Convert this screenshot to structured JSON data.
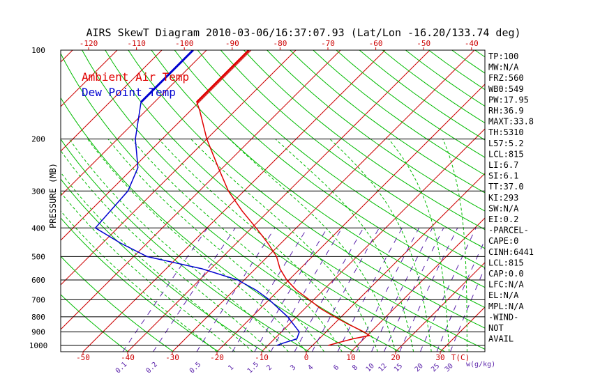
{
  "chart_data": {
    "type": "line",
    "title": "AIRS SkewT Diagram 2010-03-06/16:37:07.93 (Lat/Lon -16.20/133.74 deg)",
    "ylabel": "PRESSURE (MB)",
    "y_scale": "log",
    "ylim": [
      1050,
      100
    ],
    "xlim_bottom_c": [
      -55,
      40
    ],
    "pressure_ticks": [
      "100",
      "200",
      "300",
      "400",
      "500",
      "600",
      "700",
      "800",
      "900",
      "1000"
    ],
    "bottom_temp_ticks": [
      "-50",
      "-40",
      "-30",
      "-20",
      "-10",
      "0",
      "10",
      "20",
      "30"
    ],
    "top_temp_ticks": [
      "-120",
      "-110",
      "-100",
      "-90",
      "-80",
      "-70",
      "-60",
      "-50",
      "-40"
    ],
    "bottom_unit_label": "T(C)",
    "mixing_ratio_label": "w(g/kg)",
    "mixing_ratio_ticks": [
      "0.1",
      "0.2",
      "0.5",
      "1",
      "1.5",
      "2",
      "3",
      "4",
      "6",
      "8",
      "10",
      "12",
      "15",
      "20",
      "25",
      "30"
    ],
    "grid": true,
    "legend": "top-left inside",
    "series": [
      {
        "name": "Ambient Air Temp",
        "color": "#e00000",
        "points": [
          [
            100,
            -80.5
          ],
          [
            150,
            -80.5
          ],
          [
            160,
            -78
          ],
          [
            200,
            -70
          ],
          [
            250,
            -61
          ],
          [
            300,
            -53.5
          ],
          [
            350,
            -46
          ],
          [
            400,
            -39
          ],
          [
            450,
            -33
          ],
          [
            500,
            -28
          ],
          [
            550,
            -24.5
          ],
          [
            600,
            -20.5
          ],
          [
            650,
            -16
          ],
          [
            700,
            -11
          ],
          [
            750,
            -6.5
          ],
          [
            800,
            -1.5
          ],
          [
            850,
            3.5
          ],
          [
            900,
            8.5
          ],
          [
            925,
            10.5
          ],
          [
            950,
            7.5
          ],
          [
            980,
            5
          ],
          [
            1000,
            3.5
          ]
        ]
      },
      {
        "name": "Dew Point Temp",
        "color": "#0000d0",
        "points": [
          [
            100,
            -93
          ],
          [
            150,
            -93
          ],
          [
            200,
            -86
          ],
          [
            250,
            -79
          ],
          [
            300,
            -76
          ],
          [
            400,
            -75
          ],
          [
            450,
            -66
          ],
          [
            500,
            -57
          ],
          [
            550,
            -42
          ],
          [
            600,
            -31.5
          ],
          [
            650,
            -25
          ],
          [
            700,
            -20
          ],
          [
            800,
            -12
          ],
          [
            900,
            -6
          ],
          [
            950,
            -5
          ],
          [
            980,
            -7
          ],
          [
            1000,
            -8
          ]
        ]
      }
    ],
    "legend_colors": {
      "temp": "#e00000",
      "dewpoint": "#0000d0"
    },
    "grid_colors": {
      "isobar": "#000000",
      "isotherm": "#cc0000",
      "dry_adiabat": "#00bb00",
      "moist_adiabat": "#00bb00",
      "mixing_ratio": "#5a22aa"
    }
  },
  "indices": [
    "TP:100",
    "MW:N/A",
    "FRZ:560",
    "WB0:549",
    "PW:17.95",
    "RH:36.9",
    "MAXT:33.8",
    "TH:5310",
    "L57:5.2",
    "LCL:815",
    "LI:6.7",
    "SI:6.1",
    "TT:37.0",
    "KI:293",
    "SW:N/A",
    "EI:0.2",
    "-PARCEL-",
    "CAPE:0",
    "CINH:6441",
    "LCL:815",
    "CAP:0.0",
    "LFC:N/A",
    "EL:N/A",
    "MPL:N/A",
    "-WIND-",
    "NOT",
    "AVAIL"
  ]
}
